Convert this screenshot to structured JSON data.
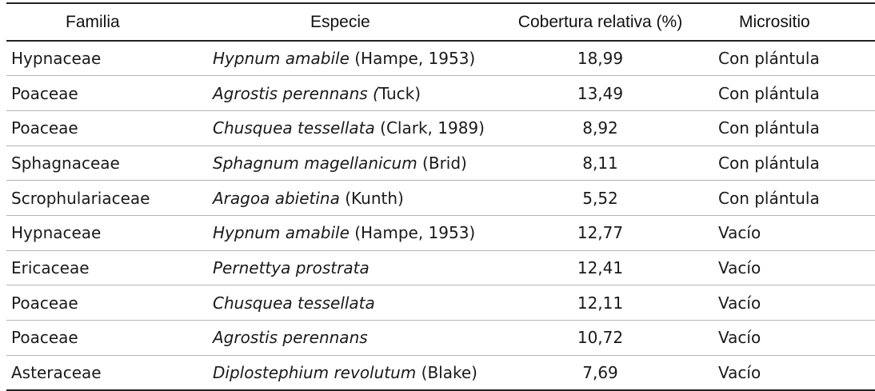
{
  "table": {
    "headers": {
      "familia": "Familia",
      "especie": "Especie",
      "cobertura": "Cobertura relativa (%)",
      "micrositio": "Micrositio"
    },
    "rows": [
      {
        "familia": "Hypnaceae",
        "especie": "Hypnum amabile",
        "autor": " (Hampe, 1953)",
        "cobertura": "18,99",
        "micrositio": "Con plántula"
      },
      {
        "familia": "Poaceae",
        "especie": "Agrostis perennans (",
        "autor": "Tuck)",
        "cobertura": "13,49",
        "micrositio": "Con plántula"
      },
      {
        "familia": "Poaceae",
        "especie": "Chusquea tessellata",
        "autor": " (Clark, 1989)",
        "cobertura": "8,92",
        "micrositio": "Con plántula"
      },
      {
        "familia": "Sphagnaceae",
        "especie": "Sphagnum magellanicum",
        "autor": " (Brid)",
        "cobertura": "8,11",
        "micrositio": "Con plántula"
      },
      {
        "familia": "Scrophulariaceae",
        "especie": "Aragoa abietina",
        "autor": " (Kunth)",
        "cobertura": "5,52",
        "micrositio": "Con plántula"
      },
      {
        "familia": "Hypnaceae",
        "especie": "Hypnum amabile",
        "autor": " (Hampe, 1953)",
        "cobertura": "12,77",
        "micrositio": "Vacío"
      },
      {
        "familia": "Ericaceae",
        "especie": "Pernettya prostrata",
        "autor": "",
        "cobertura": "12,41",
        "micrositio": "Vacío"
      },
      {
        "familia": "Poaceae",
        "especie": "Chusquea tessellata",
        "autor": "",
        "cobertura": "12,11",
        "micrositio": "Vacío"
      },
      {
        "familia": "Poaceae",
        "especie": "Agrostis perennans",
        "autor": "",
        "cobertura": "10,72",
        "micrositio": "Vacío"
      },
      {
        "familia": "Asteraceae",
        "especie": "Diplostephium revolutum",
        "autor": " (Blake)",
        "cobertura": "7,69",
        "micrositio": "Vacío"
      }
    ]
  }
}
